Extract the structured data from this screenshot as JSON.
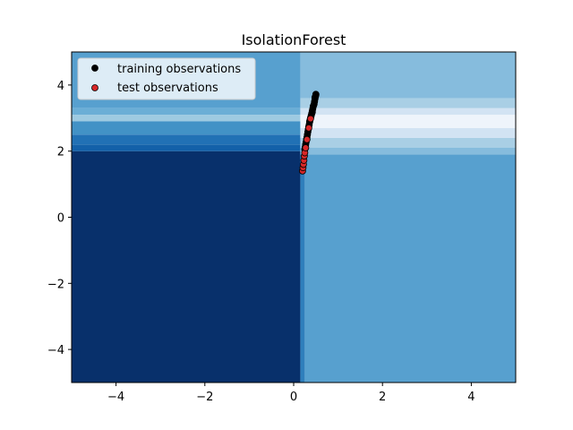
{
  "chart_data": {
    "type": "scatter",
    "title": "IsolationForest",
    "xlabel": "",
    "ylabel": "",
    "xlim": [
      -5,
      5
    ],
    "ylim": [
      -5,
      5
    ],
    "xticks": [
      -4,
      -2,
      0,
      2,
      4
    ],
    "yticks": [
      -4,
      -2,
      0,
      2,
      4
    ],
    "xtick_labels": [
      "−4",
      "−2",
      "0",
      "2",
      "4"
    ],
    "ytick_labels": [
      "−4",
      "−2",
      "0",
      "2",
      "4"
    ],
    "grid": false,
    "legend_position": "upper-left",
    "background": {
      "kind": "filled-contour",
      "colormap": "Blues_r",
      "regions": [
        {
          "x": [
            -5,
            0.15
          ],
          "y": [
            -5,
            2.0
          ],
          "color": "#08306b"
        },
        {
          "x": [
            -5,
            0.15
          ],
          "y": [
            2.0,
            2.2
          ],
          "color": "#1361a9"
        },
        {
          "x": [
            -5,
            0.15
          ],
          "y": [
            2.2,
            2.5
          ],
          "color": "#2171b5"
        },
        {
          "x": [
            -5,
            0.15
          ],
          "y": [
            2.5,
            2.9
          ],
          "color": "#4292c6"
        },
        {
          "x": [
            -5,
            0.15
          ],
          "y": [
            2.9,
            3.1
          ],
          "color": "#9ecae1"
        },
        {
          "x": [
            -5,
            0.15
          ],
          "y": [
            3.1,
            3.3
          ],
          "color": "#6baed6"
        },
        {
          "x": [
            -5,
            0.15
          ],
          "y": [
            3.3,
            5.0
          ],
          "color": "#57a0cf"
        },
        {
          "x": [
            0.15,
            0.25
          ],
          "y": [
            -5,
            1.9
          ],
          "color": "#2f7fbc"
        },
        {
          "x": [
            0.25,
            5
          ],
          "y": [
            -5,
            1.9
          ],
          "color": "#57a0cf"
        },
        {
          "x": [
            0.15,
            5
          ],
          "y": [
            1.9,
            2.1
          ],
          "color": "#86bcdd"
        },
        {
          "x": [
            0.15,
            5
          ],
          "y": [
            2.1,
            2.4
          ],
          "color": "#a9cfe5"
        },
        {
          "x": [
            0.15,
            5
          ],
          "y": [
            2.4,
            2.7
          ],
          "color": "#d2e3f3"
        },
        {
          "x": [
            0.15,
            5
          ],
          "y": [
            2.7,
            3.1
          ],
          "color": "#eef4fb"
        },
        {
          "x": [
            0.15,
            5
          ],
          "y": [
            3.1,
            3.3
          ],
          "color": "#d2e3f3"
        },
        {
          "x": [
            0.15,
            5
          ],
          "y": [
            3.3,
            3.6
          ],
          "color": "#a9cfe5"
        },
        {
          "x": [
            0.15,
            5
          ],
          "y": [
            3.6,
            5.0
          ],
          "color": "#86bcdd"
        }
      ]
    },
    "series": [
      {
        "name": "training observations",
        "color": "#000000",
        "edgecolor": "#000000",
        "marker": "circle",
        "points": [
          [
            0.4,
            3.1
          ],
          [
            0.41,
            3.15
          ],
          [
            0.42,
            3.22
          ],
          [
            0.43,
            3.28
          ],
          [
            0.44,
            3.35
          ],
          [
            0.46,
            3.42
          ],
          [
            0.47,
            3.5
          ],
          [
            0.48,
            3.58
          ],
          [
            0.49,
            3.65
          ],
          [
            0.5,
            3.72
          ],
          [
            0.38,
            3.0
          ],
          [
            0.37,
            2.95
          ],
          [
            0.36,
            2.88
          ],
          [
            0.35,
            2.8
          ],
          [
            0.34,
            2.74
          ],
          [
            0.33,
            2.66
          ],
          [
            0.32,
            2.58
          ],
          [
            0.31,
            2.5
          ],
          [
            0.3,
            2.42
          ],
          [
            0.29,
            2.35
          ],
          [
            0.28,
            2.27
          ],
          [
            0.27,
            2.2
          ],
          [
            0.26,
            2.12
          ],
          [
            0.25,
            2.05
          ],
          [
            0.39,
            3.05
          ],
          [
            0.42,
            3.18
          ],
          [
            0.45,
            3.38
          ],
          [
            0.48,
            3.62
          ],
          [
            0.5,
            3.7
          ],
          [
            0.36,
            2.9
          ]
        ]
      },
      {
        "name": "test observations",
        "color": "#d62728",
        "edgecolor": "#000000",
        "marker": "circle",
        "points": [
          [
            0.2,
            1.4
          ],
          [
            0.21,
            1.5
          ],
          [
            0.22,
            1.6
          ],
          [
            0.23,
            1.72
          ],
          [
            0.24,
            1.85
          ],
          [
            0.25,
            1.95
          ],
          [
            0.27,
            2.1
          ],
          [
            0.3,
            2.35
          ],
          [
            0.34,
            2.7
          ],
          [
            0.38,
            2.98
          ]
        ]
      }
    ]
  }
}
